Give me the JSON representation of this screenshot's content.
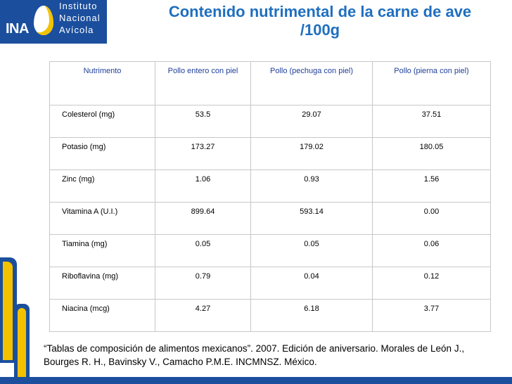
{
  "logo": {
    "mark": "INA",
    "lines": [
      "Instituto",
      "Nacional",
      "Avícola"
    ]
  },
  "title": {
    "line1": "Contenido nutrimental de la carne de ave",
    "line2": "/100g"
  },
  "table": {
    "headers": [
      "Nutrimento",
      "Pollo entero con piel",
      "Pollo (pechuga con piel)",
      "Pollo (pierna con piel)"
    ],
    "rows": [
      [
        "Colesterol (mg)",
        "53.5",
        "29.07",
        "37.51"
      ],
      [
        "Potasio (mg)",
        "173.27",
        "179.02",
        "180.05"
      ],
      [
        "Zinc (mg)",
        "1.06",
        "0.93",
        "1.56"
      ],
      [
        "Vitamina A (U.I.)",
        "899.64",
        "593.14",
        "0.00"
      ],
      [
        "Tiamina (mg)",
        "0.05",
        "0.05",
        "0.06"
      ],
      [
        "Riboflavina (mg)",
        "0.79",
        "0.04",
        "0.12"
      ],
      [
        "Niacina (mcg)",
        "4.27",
        "6.18",
        "3.77"
      ]
    ]
  },
  "citation": {
    "line1": "“Tablas de composición de alimentos mexicanos”. 2007. Edición de aniversario. Morales de León J.,",
    "line2": "Bourges R. H., Bavinsky V., Camacho P.M.E. INCMNSZ. México."
  },
  "colors": {
    "brand_blue": "#1b4f9e",
    "brand_yellow": "#f2c200",
    "title_blue": "#1f6fbf"
  }
}
